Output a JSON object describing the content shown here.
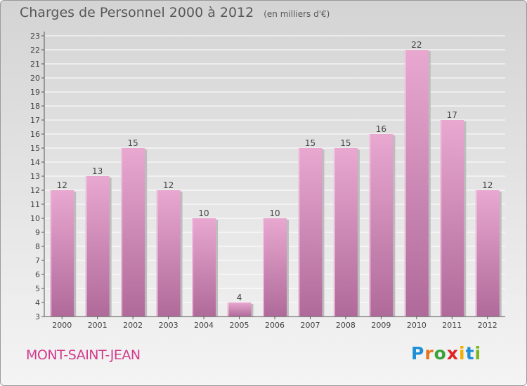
{
  "header": {
    "title": "Charges de Personnel 2000 à 2012",
    "unit": "(en milliers d'€)"
  },
  "footer": {
    "commune": "MONT-SAINT-JEAN",
    "logo_text": "Proxiti",
    "logo_colors": [
      "#1f8fd6",
      "#e8731e",
      "#3aa23a",
      "#e02424",
      "#f0b000",
      "#1f8fd6",
      "#7ab51d"
    ]
  },
  "colors": {
    "bar_light": "#e8a8d0",
    "bar_dark": "#b06a9a",
    "commune": "#d23c8c"
  },
  "chart_data": {
    "type": "bar",
    "categories": [
      "2000",
      "2001",
      "2002",
      "2003",
      "2004",
      "2005",
      "2006",
      "2007",
      "2008",
      "2009",
      "2010",
      "2011",
      "2012"
    ],
    "values": [
      12,
      13,
      15,
      12,
      10,
      4,
      10,
      15,
      15,
      16,
      22,
      17,
      12
    ],
    "title": "Charges de Personnel 2000 à 2012",
    "subtitle": "(en milliers d'€)",
    "xlabel": "",
    "ylabel": "",
    "ylim": [
      3,
      23
    ],
    "yticks": [
      3,
      4,
      5,
      6,
      7,
      8,
      9,
      10,
      11,
      12,
      13,
      14,
      15,
      16,
      17,
      18,
      19,
      20,
      21,
      22,
      23
    ],
    "grid": true,
    "legend": "none"
  }
}
